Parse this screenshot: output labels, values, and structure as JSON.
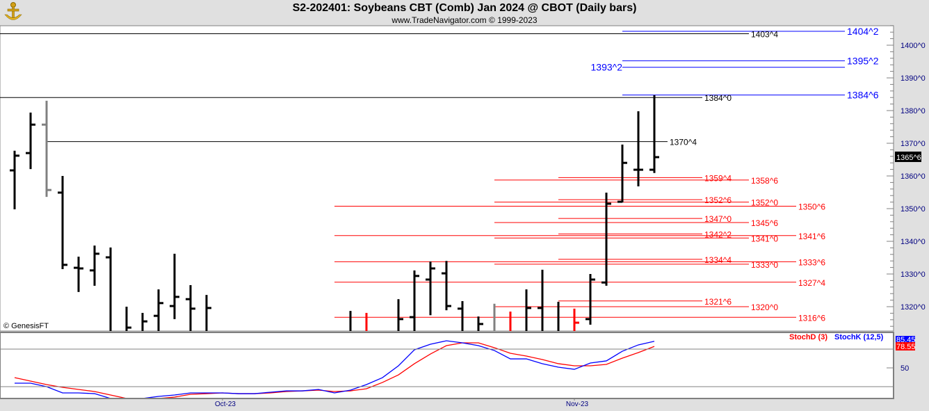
{
  "header": {
    "title": "S2-202401:  Soybeans CBT (Comb) Jan 2024 @ CBOT  (Daily bars)",
    "subtitle": "www.TradeNavigator.com © 1999-2023",
    "logo": "anchor-logo"
  },
  "watermark": "© GenesisFT",
  "colors": {
    "up_bar": "#000000",
    "gray_bar": "#808080",
    "red_bar": "#ff0000",
    "stochK": "#0000ff",
    "stochD": "#ff0000",
    "blue_level": "#0000ff",
    "red_level": "#ff0000",
    "black_level": "#000000"
  },
  "chart_data": [
    {
      "type": "ohlc",
      "title": "S2-202401:  Soybeans CBT (Comb) Jan 2024 @ CBOT  (Daily bars)",
      "price_format": "whole^eighths",
      "ylim": [
        1312.5,
        1408
      ],
      "y_ticks": [
        "1400^0",
        "1390^0",
        "1380^0",
        "1370^0",
        "1360^0",
        "1350^0",
        "1340^0",
        "1330^0",
        "1320^0"
      ],
      "y_tick_values": [
        1400,
        1390,
        1380,
        1370,
        1360,
        1350,
        1340,
        1330,
        1320
      ],
      "x_tick_labels": [
        "Oct-23",
        "Nov-23"
      ],
      "x_tick_dates": [
        "2023-10-02",
        "2023-11-01"
      ],
      "last_price": "1365^6",
      "dates": [
        "2023-09-13",
        "2023-09-14",
        "2023-09-15",
        "2023-09-18",
        "2023-09-19",
        "2023-09-20",
        "2023-09-21",
        "2023-09-22",
        "2023-09-25",
        "2023-09-26",
        "2023-09-27",
        "2023-09-28",
        "2023-09-29",
        "2023-10-02",
        "2023-10-03",
        "2023-10-04",
        "2023-10-05",
        "2023-10-06",
        "2023-10-09",
        "2023-10-10",
        "2023-10-11",
        "2023-10-12",
        "2023-10-13",
        "2023-10-16",
        "2023-10-17",
        "2023-10-18",
        "2023-10-19",
        "2023-10-20",
        "2023-10-23",
        "2023-10-24",
        "2023-10-25",
        "2023-10-26",
        "2023-10-27",
        "2023-10-30",
        "2023-10-31",
        "2023-11-01",
        "2023-11-02",
        "2023-11-03",
        "2023-11-06",
        "2023-11-07",
        "2023-11-08"
      ],
      "bars": [
        {
          "d": "2023-09-13",
          "o": 1361.7,
          "h": 1367.7,
          "l": 1349.8,
          "c": 1366.2,
          "color": "black"
        },
        {
          "d": "2023-09-14",
          "o": 1367,
          "h": 1379.4,
          "l": 1362.1,
          "c": 1375.7,
          "color": "black"
        },
        {
          "d": "2023-09-15",
          "o": 1375.7,
          "h": 1383,
          "l": 1353.6,
          "c": 1355.7,
          "color": "gray"
        },
        {
          "d": "2023-09-18",
          "o": 1354.9,
          "h": 1360,
          "l": 1331.5,
          "c": 1332.8,
          "color": "black"
        },
        {
          "d": "2023-09-19",
          "o": 1331.9,
          "h": 1335.3,
          "l": 1324.5,
          "c": 1331.7,
          "color": "black"
        },
        {
          "d": "2023-09-20",
          "o": 1331.1,
          "h": 1338.7,
          "l": 1326.4,
          "c": 1336.2,
          "color": "black"
        },
        {
          "d": "2023-09-21",
          "o": 1335.1,
          "h": 1338.1,
          "l": null,
          "c": null,
          "color": "black"
        },
        {
          "d": "2023-09-22",
          "o": null,
          "h": 1320,
          "l": null,
          "c": 1313.6,
          "color": "black"
        },
        {
          "d": "2023-09-25",
          "o": null,
          "h": 1318.1,
          "l": null,
          "c": 1315.5,
          "color": "black"
        },
        {
          "d": "2023-09-26",
          "o": 1317.2,
          "h": 1325.3,
          "l": null,
          "c": 1321.1,
          "color": "black"
        },
        {
          "d": "2023-09-27",
          "o": 1320.2,
          "h": 1336.2,
          "l": 1316.2,
          "c": 1323,
          "color": "black"
        },
        {
          "d": "2023-09-28",
          "o": 1322.3,
          "h": 1326.6,
          "l": null,
          "c": 1319.4,
          "color": "black"
        },
        {
          "d": "2023-09-29",
          "o": null,
          "h": 1323.6,
          "l": null,
          "c": 1319.6,
          "color": "black"
        },
        {
          "d": "2023-10-12",
          "o": null,
          "h": 1318.7,
          "l": null,
          "c": null,
          "color": "black"
        },
        {
          "d": "2023-10-13",
          "o": null,
          "h": 1318.1,
          "l": null,
          "c": null,
          "color": "red"
        },
        {
          "d": "2023-10-17",
          "o": null,
          "h": 1322.3,
          "l": null,
          "c": 1316.2,
          "color": "black"
        },
        {
          "d": "2023-10-18",
          "o": 1316.8,
          "h": 1331.1,
          "l": null,
          "c": 1329.4,
          "color": "black"
        },
        {
          "d": "2023-10-19",
          "o": 1328.3,
          "h": 1333.8,
          "l": 1317.4,
          "c": 1331.7,
          "color": "black"
        },
        {
          "d": "2023-10-20",
          "o": 1330.2,
          "h": 1334,
          "l": 1318.9,
          "c": 1320.2,
          "color": "black"
        },
        {
          "d": "2023-10-23",
          "o": 1319.4,
          "h": 1321.7,
          "l": null,
          "c": null,
          "color": "black"
        },
        {
          "d": "2023-10-24",
          "o": null,
          "h": 1317,
          "l": null,
          "c": 1314.7,
          "color": "black"
        },
        {
          "d": "2023-10-25",
          "o": null,
          "h": 1320.9,
          "l": null,
          "c": null,
          "color": "gray"
        },
        {
          "d": "2023-10-26",
          "o": null,
          "h": 1318.5,
          "l": null,
          "c": null,
          "color": "red"
        },
        {
          "d": "2023-10-27",
          "o": null,
          "h": 1325.3,
          "l": null,
          "c": 1319.6,
          "color": "black"
        },
        {
          "d": "2023-10-30",
          "o": 1319.6,
          "h": 1331.3,
          "l": null,
          "c": null,
          "color": "black"
        },
        {
          "d": "2023-10-31",
          "o": null,
          "h": 1321.5,
          "l": null,
          "c": null,
          "color": "black"
        },
        {
          "d": "2023-11-01",
          "o": null,
          "h": 1319.4,
          "l": null,
          "c": 1315.1,
          "color": "red"
        },
        {
          "d": "2023-11-02",
          "o": 1316.2,
          "h": 1330,
          "l": 1314.5,
          "c": 1328.3,
          "color": "black"
        },
        {
          "d": "2023-11-03",
          "o": 1327.4,
          "h": 1354.9,
          "l": 1326.4,
          "c": 1351.5,
          "color": "black"
        },
        {
          "d": "2023-11-06",
          "o": 1352.1,
          "h": 1369.6,
          "l": 1351.9,
          "c": 1364,
          "color": "black"
        },
        {
          "d": "2023-11-07",
          "o": 1361.9,
          "h": 1379.8,
          "l": 1356.8,
          "c": 1361.9,
          "color": "black"
        },
        {
          "d": "2023-11-08",
          "o": 1361.9,
          "h": 1384.7,
          "l": 1360.9,
          "c": 1365.75,
          "color": "black"
        }
      ],
      "levels": [
        {
          "label": "1403^4",
          "value": 1403.5,
          "color": "black",
          "from": null
        },
        {
          "label": "1384^0",
          "value": 1384,
          "color": "black",
          "from": null
        },
        {
          "label": "1370^4",
          "value": 1370.5,
          "color": "black",
          "from": "2023-09-15"
        },
        {
          "label": "1404^2",
          "value": 1404.25,
          "color": "blue",
          "from": "2023-11-06"
        },
        {
          "label": "1395^2",
          "value": 1395.25,
          "color": "blue",
          "from": "2023-11-06"
        },
        {
          "label": "1393^2",
          "value": 1393.25,
          "color": "blue",
          "from": "2023-11-06"
        },
        {
          "label": "1384^6",
          "value": 1384.75,
          "color": "blue",
          "from": "2023-11-06"
        },
        {
          "label": "1359^4",
          "value": 1359.5,
          "color": "red",
          "from": "2023-10-31"
        },
        {
          "label": "1358^6",
          "value": 1358.75,
          "color": "red",
          "from": "2023-10-25"
        },
        {
          "label": "1352^6",
          "value": 1352.75,
          "color": "red",
          "from": "2023-10-31"
        },
        {
          "label": "1352^0",
          "value": 1352,
          "color": "red",
          "from": "2023-10-25"
        },
        {
          "label": "1350^6",
          "value": 1350.75,
          "color": "red",
          "from": "2023-10-11"
        },
        {
          "label": "1347^0",
          "value": 1347,
          "color": "red",
          "from": "2023-10-31"
        },
        {
          "label": "1345^6",
          "value": 1345.75,
          "color": "red",
          "from": "2023-10-25"
        },
        {
          "label": "1342^2",
          "value": 1342.25,
          "color": "red",
          "from": "2023-10-31"
        },
        {
          "label": "1341^6",
          "value": 1341.75,
          "color": "red",
          "from": "2023-10-11"
        },
        {
          "label": "1341^0",
          "value": 1341,
          "color": "red",
          "from": "2023-10-25"
        },
        {
          "label": "1334^4",
          "value": 1334.5,
          "color": "red",
          "from": "2023-10-31"
        },
        {
          "label": "1333^6",
          "value": 1333.75,
          "color": "red",
          "from": "2023-10-11"
        },
        {
          "label": "1333^0",
          "value": 1333,
          "color": "red",
          "from": "2023-10-25"
        },
        {
          "label": "1327^4",
          "value": 1327.5,
          "color": "red",
          "from": "2023-10-11"
        },
        {
          "label": "1321^6",
          "value": 1321.75,
          "color": "red",
          "from": "2023-10-31"
        },
        {
          "label": "1320^0",
          "value": 1320,
          "color": "red",
          "from": "2023-10-25"
        },
        {
          "label": "1316^6",
          "value": 1316.75,
          "color": "red",
          "from": "2023-10-11"
        }
      ]
    },
    {
      "type": "line",
      "y_ticks": [
        "50"
      ],
      "y_tick_values": [
        50
      ],
      "ylim": [
        9,
        94
      ],
      "guide_lines": [
        75,
        25
      ],
      "series": [
        {
          "name": "StochK (12,5)",
          "color": "#0000ff",
          "last": "85.45",
          "values": [
            29.6,
            29.6,
            25,
            16.7,
            16.7,
            15.7,
            9.3,
            8.3,
            9.3,
            12,
            13.9,
            16.7,
            16.7,
            16.7,
            15.7,
            15.7,
            17.6,
            19.4,
            19.4,
            21.3,
            16.7,
            20.4,
            27.8,
            37,
            52.8,
            74.1,
            81.5,
            86.1,
            83.3,
            79.6,
            73.1,
            62,
            62,
            55.6,
            50.9,
            48.1,
            56.5,
            59.3,
            72.2,
            80.6,
            85.45
          ]
        },
        {
          "name": "StochD (3)",
          "color": "#ff0000",
          "last": "78.55",
          "values": [
            37,
            32.4,
            27.8,
            24.1,
            21.3,
            18.5,
            13.9,
            9.3,
            8.3,
            9.3,
            11.1,
            14.8,
            15.7,
            16.7,
            15.7,
            15.7,
            16.7,
            18.5,
            19.4,
            20.4,
            18.5,
            19.4,
            22.2,
            30.6,
            40.7,
            55.6,
            68.5,
            79.6,
            83.3,
            83.3,
            76.9,
            69.4,
            65.7,
            61.1,
            55.6,
            52.8,
            52.8,
            54.6,
            63,
            70.4,
            78.55
          ]
        }
      ]
    }
  ]
}
